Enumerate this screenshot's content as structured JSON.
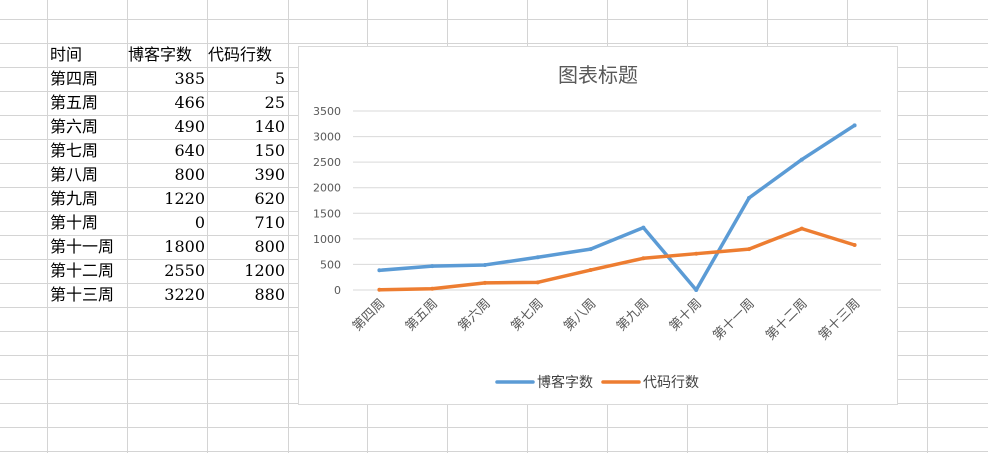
{
  "sheet": {
    "headers": [
      "时间",
      "博客字数",
      "代码行数"
    ],
    "rows": [
      [
        "第四周",
        "385",
        "5"
      ],
      [
        "第五周",
        "466",
        "25"
      ],
      [
        "第六周",
        "490",
        "140"
      ],
      [
        "第七周",
        "640",
        "150"
      ],
      [
        "第八周",
        "800",
        "390"
      ],
      [
        "第九周",
        "1220",
        "620"
      ],
      [
        "第十周",
        "0",
        "710"
      ],
      [
        "第十一周",
        "1800",
        "800"
      ],
      [
        "第十二周",
        "2550",
        "1200"
      ],
      [
        "第十三周",
        "3220",
        "880"
      ]
    ]
  },
  "chart_data": {
    "type": "line",
    "title": "图表标题",
    "xlabel": "",
    "ylabel": "",
    "categories": [
      "第四周",
      "第五周",
      "第六周",
      "第七周",
      "第八周",
      "第九周",
      "第十周",
      "第十一周",
      "第十二周",
      "第十三周"
    ],
    "series": [
      {
        "name": "博客字数",
        "color": "#5b9bd5",
        "values": [
          385,
          466,
          490,
          640,
          800,
          1220,
          0,
          1800,
          2550,
          3220
        ]
      },
      {
        "name": "代码行数",
        "color": "#ed7d31",
        "values": [
          5,
          25,
          140,
          150,
          390,
          620,
          710,
          800,
          1200,
          880
        ]
      }
    ],
    "ylim": [
      0,
      3500
    ],
    "yticks": [
      0,
      500,
      1000,
      1500,
      2000,
      2500,
      3000,
      3500
    ],
    "grid": true,
    "legend": "bottom"
  }
}
